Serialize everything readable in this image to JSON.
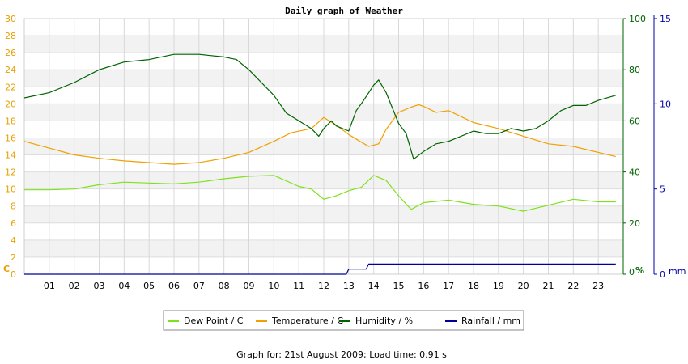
{
  "chart_data": {
    "type": "line",
    "title": "Daily graph of Weather",
    "x_ticks": [
      "01",
      "02",
      "03",
      "04",
      "05",
      "06",
      "07",
      "08",
      "09",
      "10",
      "11",
      "12",
      "13",
      "14",
      "15",
      "16",
      "17",
      "18",
      "19",
      "20",
      "21",
      "22",
      "23"
    ],
    "xlim": [
      0,
      24
    ],
    "axes": {
      "left": {
        "unit": "C",
        "ylim": [
          0,
          30
        ],
        "ticks": [
          0,
          2,
          4,
          6,
          8,
          10,
          12,
          14,
          16,
          18,
          20,
          22,
          24,
          26,
          28,
          30
        ],
        "color": "#e8a000"
      },
      "right1": {
        "unit": "%",
        "ylim": [
          0,
          100
        ],
        "ticks": [
          0,
          20,
          40,
          60,
          80,
          100
        ],
        "color": "#006400"
      },
      "right2": {
        "unit": "mm",
        "ylim": [
          0,
          15
        ],
        "ticks": [
          0,
          5,
          10,
          15
        ],
        "color": "#0000aa"
      }
    },
    "series": [
      {
        "name": "Dew Point / C",
        "axis": "left",
        "color": "#7ee21a",
        "x": [
          0,
          1,
          2,
          3,
          4,
          5,
          6,
          7,
          8,
          9,
          10,
          11,
          11.5,
          12,
          12.5,
          13,
          13.5,
          14,
          14.5,
          15,
          15.5,
          16,
          17,
          18,
          19,
          20,
          21,
          22,
          23,
          23.7
        ],
        "y": [
          9.9,
          9.9,
          10.0,
          10.5,
          10.8,
          10.7,
          10.6,
          10.8,
          11.2,
          11.5,
          11.6,
          10.3,
          10.0,
          8.8,
          9.2,
          9.8,
          10.2,
          11.6,
          11.0,
          9.2,
          7.6,
          8.4,
          8.7,
          8.2,
          8.0,
          7.4,
          8.1,
          8.8,
          8.5,
          8.5
        ]
      },
      {
        "name": "Temperature / C",
        "axis": "left",
        "color": "#f0a000",
        "x": [
          0,
          1,
          2,
          3,
          4,
          5,
          6,
          7,
          8,
          9,
          10,
          10.7,
          11.5,
          12,
          12.5,
          13,
          13.5,
          13.8,
          14.2,
          14.5,
          15,
          15.5,
          15.8,
          16,
          16.5,
          17,
          18,
          19,
          20,
          21,
          22,
          23,
          23.7
        ],
        "y": [
          15.6,
          14.8,
          14.0,
          13.6,
          13.3,
          13.1,
          12.9,
          13.1,
          13.6,
          14.3,
          15.6,
          16.6,
          17.1,
          18.4,
          17.5,
          16.4,
          15.5,
          15.0,
          15.3,
          17.0,
          19.0,
          19.6,
          19.9,
          19.7,
          19.0,
          19.2,
          17.8,
          17.1,
          16.2,
          15.3,
          15.0,
          14.3,
          13.8
        ]
      },
      {
        "name": "Humidity / %",
        "axis": "right1",
        "color": "#006400",
        "x": [
          0,
          1,
          2,
          3,
          4,
          5,
          6,
          7,
          8,
          8.5,
          9,
          9.5,
          10,
          10.5,
          11,
          11.5,
          11.8,
          12,
          12.3,
          12.5,
          13,
          13.3,
          13.6,
          14,
          14.2,
          14.5,
          15,
          15.3,
          15.6,
          16,
          16.5,
          17,
          17.5,
          18,
          18.5,
          19,
          19.5,
          20,
          20.5,
          21,
          21.5,
          22,
          22.5,
          23,
          23.7
        ],
        "y": [
          69,
          71,
          75,
          80,
          83,
          84,
          86,
          86,
          85,
          84,
          80,
          75,
          70,
          63,
          60,
          57,
          54,
          57,
          60,
          58,
          56,
          64,
          68,
          74,
          76,
          71,
          59,
          55,
          45,
          48,
          51,
          52,
          54,
          56,
          55,
          55,
          57,
          56,
          57,
          60,
          64,
          66,
          66,
          68,
          70
        ]
      },
      {
        "name": "Rainfall / mm",
        "axis": "right2",
        "color": "#000099",
        "x": [
          0,
          12.9,
          13.0,
          13.7,
          13.8,
          23.7
        ],
        "y": [
          0,
          0,
          0.3,
          0.3,
          0.6,
          0.6
        ]
      }
    ],
    "legend_position": "bottom",
    "grid": true
  },
  "footer": "Graph for: 21st August 2009; Load time: 0.91 s"
}
